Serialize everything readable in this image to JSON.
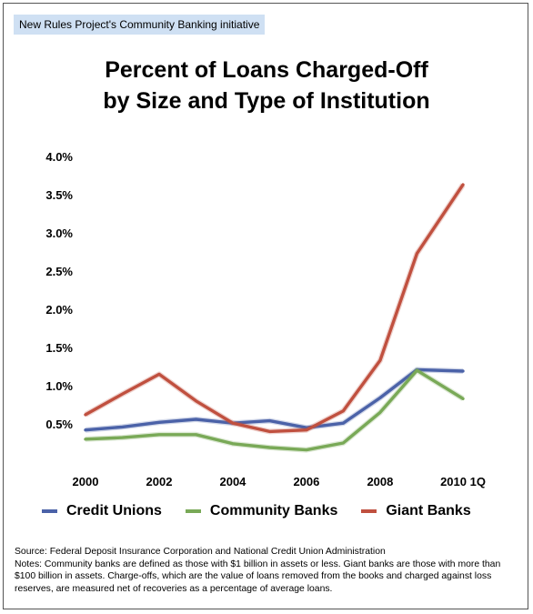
{
  "banner": "New Rules Project's Community Banking initiative",
  "title_lines": [
    "Percent of Loans Charged-Off",
    "by Size and Type of Institution"
  ],
  "chart_data": {
    "type": "line",
    "title": "Percent of Loans Charged-Off by Size and Type of Institution",
    "x": [
      2000,
      2001,
      2002,
      2003,
      2004,
      2005,
      2006,
      2007,
      2008,
      2009,
      2010.25
    ],
    "x_tick_values": [
      2000,
      2002,
      2004,
      2006,
      2008,
      2010.25
    ],
    "x_tick_labels": [
      "2000",
      "2002",
      "2004",
      "2006",
      "2008",
      "2010 1Q"
    ],
    "xlim": [
      2000,
      2010.25
    ],
    "ylim": [
      0,
      4.0
    ],
    "y_ticks": [
      0.5,
      1.0,
      1.5,
      2.0,
      2.5,
      3.0,
      3.5,
      4.0
    ],
    "y_tick_labels": [
      "0.5%",
      "1.0%",
      "1.5%",
      "2.0%",
      "2.5%",
      "3.0%",
      "3.5%",
      "4.0%"
    ],
    "grid": false,
    "legend_position": "bottom",
    "series": [
      {
        "name": "Credit Unions",
        "color": "#4b62a8",
        "values": [
          0.42,
          0.46,
          0.52,
          0.56,
          0.51,
          0.54,
          0.45,
          0.51,
          0.84,
          1.21,
          1.19
        ]
      },
      {
        "name": "Community Banks",
        "color": "#79a957",
        "values": [
          0.3,
          0.32,
          0.36,
          0.36,
          0.24,
          0.19,
          0.16,
          0.25,
          0.65,
          1.2,
          0.83
        ]
      },
      {
        "name": "Giant Banks",
        "color": "#c0503f",
        "values": [
          0.62,
          0.89,
          1.15,
          0.8,
          0.51,
          0.4,
          0.42,
          0.67,
          1.33,
          2.73,
          3.63
        ]
      }
    ]
  },
  "notes": {
    "source": "Source: Federal Deposit Insurance Corporation and National Credit Union Administration",
    "text": "Notes:  Community banks are defined as those with $1 billion in assets or less. Giant banks are those with more than $100 billion in assets.  Charge-offs, which are the value of loans removed from the books and charged against loss reserves, are measured net of recoveries as a percentage of average loans."
  }
}
